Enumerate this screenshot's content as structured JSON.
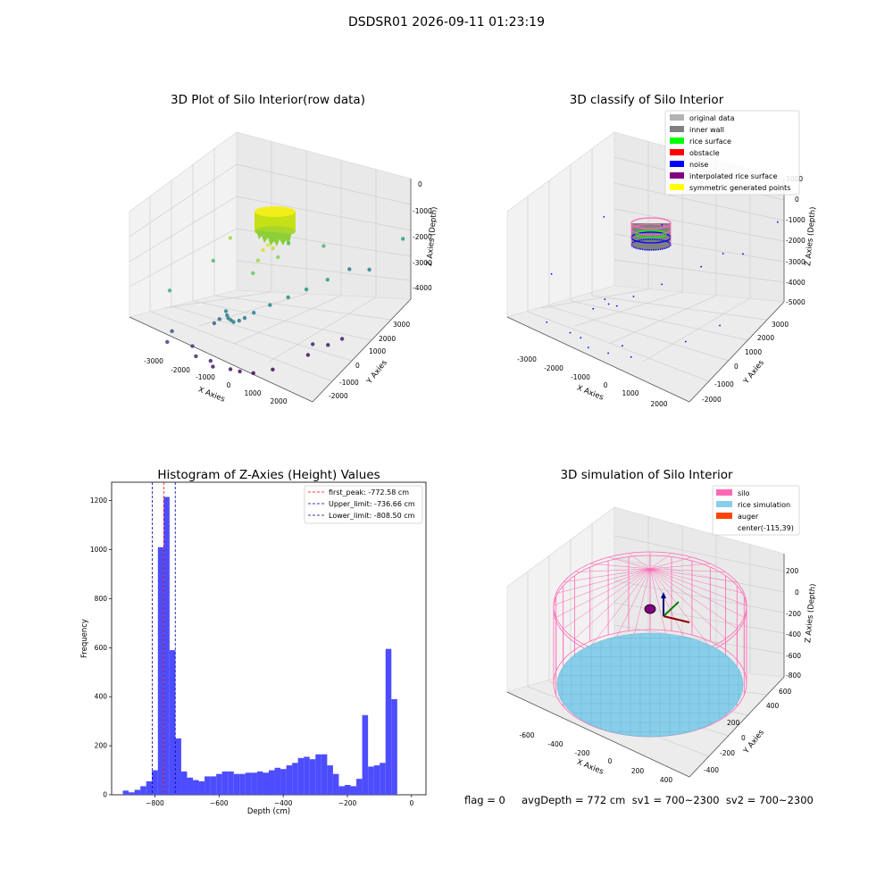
{
  "figure": {
    "suptitle": "DSDSR01 2026-09-11 01:23:19",
    "status_line": "flag = 0     avgDepth = 772 cm  sv1 = 700~2300  sv2 = 700~2300"
  },
  "colors": {
    "hist_bar": "#4d4dff",
    "first_peak": "#ff0000",
    "limits": "#0000aa",
    "original_data": "#b3b3b3",
    "inner_wall": "#808080",
    "rice_surface": "#00ff00",
    "obstacle": "#ff0000",
    "noise": "#0000ff",
    "interpolated_rice_surface": "#800080",
    "symmetric_generated_points": "#ffff00",
    "silo": "#ff69b4",
    "rice_simulation": "#87ceeb",
    "auger": "#ff4500"
  },
  "chart_data": [
    {
      "type": "scatter",
      "title": "3D Plot of Silo Interior(row data)",
      "xlabel": "X Axies",
      "ylabel": "Y Axies",
      "zlabel": "Z Axies (Depth)",
      "xticks": [
        "-3000",
        "-2000",
        "-1000",
        "0",
        "1000",
        "2000"
      ],
      "yticks": [
        "-2000",
        "-1000",
        "0",
        "1000",
        "2000",
        "3000"
      ],
      "zticks": [
        "0",
        "-1000",
        "-2000",
        "-3000",
        "-4000"
      ],
      "colormap": "viridis (by depth)",
      "points": [
        {
          "x": -250,
          "y": 200,
          "z": -1100
        },
        {
          "x": -300,
          "y": 100,
          "z": -1200
        },
        {
          "x": -200,
          "y": 300,
          "z": -1300
        },
        {
          "x": -350,
          "y": 0,
          "z": -1500
        },
        {
          "x": -150,
          "y": 400,
          "z": -1700
        },
        {
          "x": -400,
          "y": -100,
          "z": -1900
        },
        {
          "x": -2100,
          "y": 1500,
          "z": -1500
        },
        {
          "x": -2500,
          "y": 0,
          "z": -2300
        },
        {
          "x": -2300,
          "y": 1200,
          "z": -2100
        },
        {
          "x": -900,
          "y": 1800,
          "z": -2100
        },
        {
          "x": 100,
          "y": 1600,
          "z": -2200
        },
        {
          "x": 1600,
          "y": 2200,
          "z": -2600
        },
        {
          "x": 1500,
          "y": 1200,
          "z": -3000
        },
        {
          "x": 800,
          "y": 1500,
          "z": -3100
        },
        {
          "x": -700,
          "y": -600,
          "z": -2900
        },
        {
          "x": -600,
          "y": -700,
          "z": -3000
        },
        {
          "x": -500,
          "y": -800,
          "z": -3050
        },
        {
          "x": -400,
          "y": -850,
          "z": -3100
        },
        {
          "x": -300,
          "y": -900,
          "z": -3150
        },
        {
          "x": -200,
          "y": -850,
          "z": -3150
        },
        {
          "x": -100,
          "y": -800,
          "z": -3100
        },
        {
          "x": 50,
          "y": -700,
          "z": -3000
        },
        {
          "x": 300,
          "y": -500,
          "z": -2900
        },
        {
          "x": 600,
          "y": -300,
          "z": -2800
        },
        {
          "x": 900,
          "y": -100,
          "z": -2700
        },
        {
          "x": 1200,
          "y": 200,
          "z": -2600
        },
        {
          "x": -1000,
          "y": -400,
          "z": -3300
        },
        {
          "x": -1200,
          "y": -300,
          "z": -3500
        },
        {
          "x": -2300,
          "y": -200,
          "z": -3700
        },
        {
          "x": -2200,
          "y": -500,
          "z": -3900
        },
        {
          "x": -1300,
          "y": -900,
          "z": -3900
        },
        {
          "x": -1000,
          "y": -1200,
          "z": -4100
        },
        {
          "x": -500,
          "y": -1400,
          "z": -4200
        },
        {
          "x": -300,
          "y": -1600,
          "z": -4300
        },
        {
          "x": 200,
          "y": -1700,
          "z": -4400
        },
        {
          "x": 500,
          "y": -1800,
          "z": -4450
        },
        {
          "x": 900,
          "y": -1900,
          "z": -4500
        },
        {
          "x": 1300,
          "y": -1800,
          "z": -4500
        },
        {
          "x": 1800,
          "y": -1300,
          "z": -4400
        },
        {
          "x": 2000,
          "y": -900,
          "z": -4350
        },
        {
          "x": 2200,
          "y": -700,
          "z": -4300
        },
        {
          "x": 1700,
          "y": -1000,
          "z": -4200
        }
      ],
      "surface": {
        "shape": "cylinder",
        "center_x": -200,
        "center_y": 200,
        "radius": 600,
        "z_top": -1000,
        "z_bottom": -1500,
        "colormap": "yellow-green"
      }
    },
    {
      "type": "scatter",
      "title": "3D classify of Silo Interior",
      "xlabel": "X Axies",
      "ylabel": "Y Axies",
      "zlabel": "Z Axies (Depth)",
      "xticks": [
        "-3000",
        "-2000",
        "-1000",
        "0",
        "1000",
        "2000"
      ],
      "yticks": [
        "-2000",
        "-1000",
        "0",
        "1000",
        "2000",
        "3000"
      ],
      "zticks": [
        "1000",
        "0",
        "-1000",
        "-2000",
        "-3000",
        "-4000",
        "-5000"
      ],
      "legend": [
        {
          "label": "original data",
          "color_key": "original_data"
        },
        {
          "label": "inner wall",
          "color_key": "inner_wall"
        },
        {
          "label": "rice surface",
          "color_key": "rice_surface"
        },
        {
          "label": "obstacle",
          "color_key": "obstacle"
        },
        {
          "label": "noise",
          "color_key": "noise"
        },
        {
          "label": "interpolated rice surface",
          "color_key": "interpolated_rice_surface"
        },
        {
          "label": "symmetric generated points",
          "color_key": "symmetric_generated_points"
        }
      ],
      "legend_position": "top-right",
      "rings": [
        {
          "class": "inner_wall",
          "radius": 600,
          "z": -1600
        },
        {
          "class": "noise",
          "radius": 550,
          "z": -1700
        },
        {
          "class": "rice_surface",
          "radius": 450,
          "z": -1800
        },
        {
          "class": "symmetric_generated_points",
          "radius": 620,
          "z": -1000
        },
        {
          "class": "interpolated_rice_surface",
          "radius": 620,
          "z": -1100
        }
      ],
      "noise_points": [
        {
          "x": -2200,
          "y": 1500,
          "z": -1200
        },
        {
          "x": -2400,
          "y": 0,
          "z": -2200
        },
        {
          "x": -1000,
          "y": 1800,
          "z": -1900
        },
        {
          "x": 1600,
          "y": 2100,
          "z": -2400
        },
        {
          "x": 1400,
          "y": 1200,
          "z": -2900
        },
        {
          "x": 700,
          "y": 1500,
          "z": -3000
        },
        {
          "x": -600,
          "y": -700,
          "z": -2900
        },
        {
          "x": -400,
          "y": -850,
          "z": -3000
        },
        {
          "x": -200,
          "y": -850,
          "z": -3100
        },
        {
          "x": 100,
          "y": -700,
          "z": -2900
        },
        {
          "x": 500,
          "y": -300,
          "z": -2800
        },
        {
          "x": 1100,
          "y": 200,
          "z": -2600
        },
        {
          "x": -1100,
          "y": -400,
          "z": -3400
        },
        {
          "x": -2300,
          "y": -300,
          "z": -3800
        },
        {
          "x": -1300,
          "y": -900,
          "z": -3900
        },
        {
          "x": -500,
          "y": -1400,
          "z": -4200
        },
        {
          "x": 200,
          "y": -1700,
          "z": -4300
        },
        {
          "x": 900,
          "y": -1900,
          "z": -4400
        },
        {
          "x": 1800,
          "y": -1300,
          "z": -4400
        },
        {
          "x": 2200,
          "y": -700,
          "z": -4300
        },
        {
          "x": -900,
          "y": -1100,
          "z": -4000
        },
        {
          "x": 400,
          "y": -1500,
          "z": -4200
        }
      ]
    },
    {
      "type": "bar",
      "title": "Histogram of Z-Axies (Height) Values",
      "xlabel": "Depth (cm)",
      "ylabel": "Frequency",
      "xlim": [
        -935,
        45
      ],
      "ylim": [
        0,
        1275
      ],
      "xticks": [
        -800,
        -600,
        -400,
        -200,
        0
      ],
      "yticks": [
        0,
        200,
        400,
        600,
        800,
        1000,
        1200
      ],
      "bin_start": -900,
      "bin_width": 18.2,
      "values": [
        17,
        10,
        20,
        35,
        55,
        100,
        1010,
        1215,
        590,
        230,
        95,
        70,
        60,
        55,
        75,
        75,
        85,
        95,
        95,
        85,
        85,
        90,
        90,
        95,
        90,
        100,
        110,
        105,
        120,
        130,
        150,
        155,
        145,
        165,
        165,
        120,
        85,
        35,
        40,
        35,
        65,
        325,
        115,
        120,
        130,
        595,
        390
      ],
      "vlines": [
        {
          "label": "first_peak: -772.58 cm",
          "x": -772.58,
          "color_key": "first_peak"
        },
        {
          "label": "Upper_limit: -736.66 cm",
          "x": -736.66,
          "color_key": "limits"
        },
        {
          "label": "Lower_limit: -808.50 cm",
          "x": -808.5,
          "color_key": "limits"
        }
      ],
      "legend_position": "top-right"
    },
    {
      "type": "surface",
      "title": "3D simulation of Silo Interior",
      "xlabel": "X Axies",
      "ylabel": "Y Axies",
      "zlabel": "Z Axies (Depth)",
      "xticks": [
        "-600",
        "-400",
        "-200",
        "0",
        "200",
        "400"
      ],
      "yticks": [
        "-400",
        "-200",
        "0",
        "200",
        "400",
        "600"
      ],
      "zticks": [
        "200",
        "0",
        "-200",
        "-400",
        "-600",
        "-800"
      ],
      "legend": [
        {
          "label": "silo",
          "color_key": "silo"
        },
        {
          "label": "rice simulation",
          "color_key": "rice_simulation"
        },
        {
          "label": "auger",
          "color_key": "auger"
        },
        {
          "label": "center(-115,39)",
          "color_key": ""
        }
      ],
      "legend_position": "top-right",
      "silo": {
        "radius": 590,
        "z_top": 200,
        "z_bottom": -830
      },
      "rice_surface_depth": -772,
      "center": {
        "x": -115,
        "y": 39
      }
    }
  ]
}
